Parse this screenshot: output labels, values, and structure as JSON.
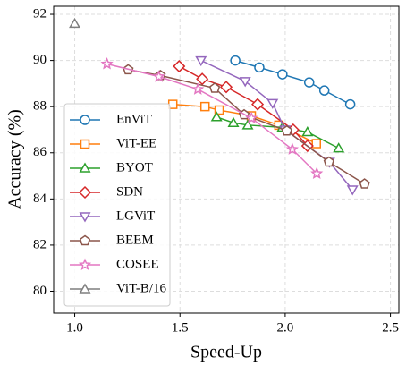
{
  "chart_data": {
    "type": "line",
    "x_label": "Speed-Up",
    "y_label": "Accuracy (%)",
    "xlim": [
      0.9,
      2.54
    ],
    "ylim": [
      79.05,
      92.35
    ],
    "xticks": [
      {
        "value": 1,
        "label": "1.0"
      },
      {
        "value": 1.5,
        "label": "1.5"
      },
      {
        "value": 2,
        "label": "2.0"
      },
      {
        "value": 2.5,
        "label": "2.5"
      }
    ],
    "yticks": [
      80,
      82,
      84,
      86,
      88,
      90,
      92
    ],
    "grid": true,
    "legend": "lower left",
    "series": [
      {
        "name": "EnViT",
        "color": "#1f77b4",
        "marker": "circle",
        "x": [
          1.763,
          1.877,
          1.987,
          2.114,
          2.186,
          2.309
        ],
        "values": [
          90.0,
          89.7,
          89.4,
          89.05,
          88.7,
          88.1
        ]
      },
      {
        "name": "ViT-EE",
        "color": "#ff7f0e",
        "marker": "square",
        "x": [
          1.466,
          1.619,
          1.686,
          1.839,
          1.97,
          2.148
        ],
        "values": [
          88.1,
          88.0,
          87.85,
          87.6,
          87.2,
          86.4
        ]
      },
      {
        "name": "BYOT",
        "color": "#2ca02c",
        "marker": "triangle",
        "x": [
          1.674,
          1.754,
          1.822,
          1.987,
          2.106,
          2.254
        ],
        "values": [
          87.55,
          87.3,
          87.2,
          87.1,
          86.9,
          86.2
        ]
      },
      {
        "name": "SDN",
        "color": "#d62728",
        "marker": "diamond",
        "x": [
          1.496,
          1.606,
          1.72,
          1.869,
          2.038,
          2.106
        ],
        "values": [
          89.75,
          89.2,
          88.85,
          88.1,
          87.0,
          86.3
        ]
      },
      {
        "name": "LGViT",
        "color": "#9467bd",
        "marker": "triangle-down",
        "x": [
          1.6,
          1.81,
          1.94,
          2.0,
          2.21,
          2.32
        ],
        "values": [
          90.0,
          89.1,
          88.15,
          87.0,
          85.6,
          84.4
        ]
      },
      {
        "name": "BEEM",
        "color": "#8c564b",
        "marker": "pentagon",
        "x": [
          1.254,
          1.407,
          1.665,
          1.805,
          2.008,
          2.208,
          2.377
        ],
        "values": [
          89.6,
          89.35,
          88.8,
          87.65,
          86.95,
          85.6,
          84.65
        ]
      },
      {
        "name": "COSEE",
        "color": "#e377c2",
        "marker": "star",
        "x": [
          1.153,
          1.4,
          1.585,
          1.84,
          2.034,
          2.15
        ],
        "values": [
          89.85,
          89.3,
          88.75,
          87.5,
          86.15,
          85.1
        ]
      },
      {
        "name": "ViT-B/16",
        "color": "#7f7f7f",
        "marker": "triangle",
        "x": [
          1.0
        ],
        "values": [
          91.6
        ]
      }
    ]
  }
}
